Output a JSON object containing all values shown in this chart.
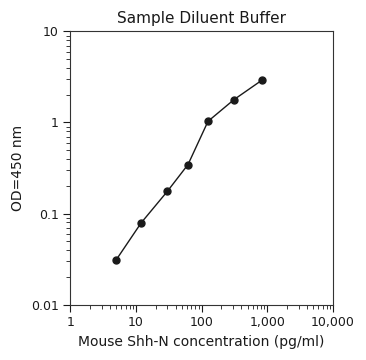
{
  "title": "Sample Diluent Buffer",
  "xlabel": "Mouse Shh-N concentration (pg/ml)",
  "ylabel": "OD=450 nm",
  "x_values": [
    5,
    12,
    30,
    62,
    125,
    310,
    820
  ],
  "y_values": [
    0.031,
    0.079,
    0.175,
    0.345,
    1.03,
    1.78,
    2.9
  ],
  "xlim": [
    1,
    10000
  ],
  "ylim": [
    0.01,
    10
  ],
  "line_color": "#1a1a1a",
  "marker_color": "#1a1a1a",
  "marker_size": 5,
  "title_fontsize": 11,
  "label_fontsize": 10,
  "tick_fontsize": 9,
  "title_color": "#1a1a1a",
  "label_color": "#1a1a1a",
  "background_color": "#ffffff"
}
